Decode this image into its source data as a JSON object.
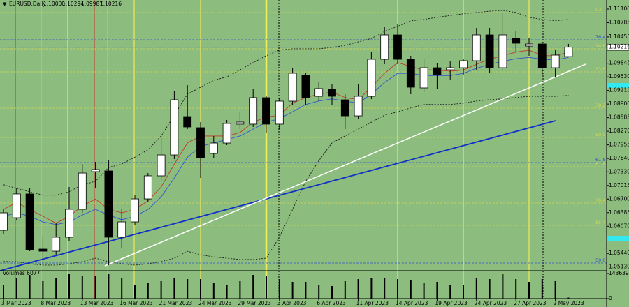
{
  "chart_data": [
    {
      "type": "candlestick",
      "title": "EURUSD,Daily",
      "header_values": [
        "1.10000",
        "1.10294",
        "1.09987",
        "1.10216"
      ],
      "categories": [
        "3 Mar 2023",
        null,
        null,
        "8 Mar 2023",
        null,
        null,
        "13 Mar 2023",
        null,
        null,
        "16 Mar 2023",
        null,
        null,
        "21 Mar 2023",
        null,
        null,
        "24 Mar 2023",
        null,
        null,
        "29 Mar 2023",
        null,
        null,
        "3 Apr 2023",
        null,
        null,
        "6 Apr 2023",
        null,
        null,
        "11 Apr 2023",
        null,
        null,
        "14 Apr 2023",
        null,
        null,
        "19 Apr 2023",
        null,
        null,
        "24 Apr 2023",
        null,
        null,
        "27 Apr 2023",
        null,
        null,
        "2 May 2023",
        null
      ],
      "open": [
        1.05977,
        1.06268,
        1.06818,
        1.05541,
        1.05492,
        1.05816,
        1.06462,
        1.07335,
        1.07351,
        1.05816,
        1.06171,
        1.06704,
        1.07238,
        1.07722,
        1.08611,
        1.08353,
        1.07755,
        1.07997,
        1.08434,
        1.08434,
        1.09048,
        1.08434,
        1.08967,
        1.09565,
        1.0908,
        1.09242,
        1.08999,
        1.08627,
        1.0908,
        1.09936,
        1.10502,
        1.09936,
        1.09274,
        1.09742,
        1.09694,
        1.09742,
        1.09904,
        1.10502,
        1.09742,
        1.10421,
        1.10243,
        1.10292,
        1.09742,
        1.1
      ],
      "high": [
        1.06462,
        1.06947,
        1.06947,
        1.05816,
        1.06139,
        1.06979,
        1.07512,
        1.07561,
        1.07593,
        1.06462,
        1.06785,
        1.07302,
        1.08159,
        1.09209,
        1.09338,
        1.08482,
        1.08159,
        1.0853,
        1.08724,
        1.09258,
        1.09096,
        1.09048,
        1.09742,
        1.09613,
        1.09403,
        1.09371,
        1.09128,
        1.09371,
        1.10098,
        1.10696,
        1.10744,
        1.10017,
        1.09936,
        1.09856,
        1.09888,
        1.09936,
        1.10664,
        1.10664,
        1.11019,
        1.10583,
        1.10421,
        1.1034,
        1.10146,
        1.10294
      ],
      "low": [
        1.05896,
        1.06203,
        1.05492,
        1.0525,
        1.05412,
        1.05735,
        1.06381,
        1.06947,
        1.05169,
        1.05573,
        1.06106,
        1.06624,
        1.07141,
        1.07626,
        1.0832,
        1.07189,
        1.07658,
        1.07949,
        1.0832,
        1.08369,
        1.0824,
        1.0832,
        1.08886,
        1.08886,
        1.08967,
        1.08886,
        1.0832,
        1.08563,
        1.09015,
        1.09823,
        1.09823,
        1.09128,
        1.09177,
        1.09258,
        1.09452,
        1.09565,
        1.09694,
        1.09613,
        1.09694,
        1.10098,
        1.10017,
        1.09565,
        1.09532,
        1.09987
      ],
      "close": [
        1.06381,
        1.06818,
        1.05525,
        1.05492,
        1.05816,
        1.06462,
        1.07302,
        1.07383,
        1.05816,
        1.06171,
        1.06704,
        1.07238,
        1.07722,
        1.08999,
        1.08369,
        1.07658,
        1.07997,
        1.0845,
        1.08482,
        1.09048,
        1.08434,
        1.08967,
        1.09613,
        1.09048,
        1.09258,
        1.0908,
        1.08627,
        1.0908,
        1.09936,
        1.10502,
        1.09936,
        1.0929,
        1.09742,
        1.09581,
        1.09742,
        1.09904,
        1.10502,
        1.09742,
        1.10502,
        1.10308,
        1.10292,
        1.09742,
        1.10033,
        1.10216
      ],
      "up_color": "#ffffff",
      "down_color": "#000000",
      "ylim": [
        1.0504,
        1.1131
      ],
      "yticks": [
        {
          "value": 1.111,
          "label": "1.11100"
        },
        {
          "value": 1.10785,
          "label": "1.10785"
        },
        {
          "value": 1.10455,
          "label": "1.10455"
        },
        {
          "value": 1.09845,
          "label": "1.09845"
        },
        {
          "value": 1.0953,
          "label": "1.09530"
        },
        {
          "value": 1.09215,
          "label": "1.09215"
        },
        {
          "value": 1.089,
          "label": "1.08900"
        },
        {
          "value": 1.08585,
          "label": "1.08585"
        },
        {
          "value": 1.0827,
          "label": "1.08270"
        },
        {
          "value": 1.07955,
          "label": "1.07955"
        },
        {
          "value": 1.0764,
          "label": "1.07640"
        },
        {
          "value": 1.0733,
          "label": "1.07330"
        },
        {
          "value": 1.07015,
          "label": "1.07015"
        },
        {
          "value": 1.067,
          "label": "1.06700"
        },
        {
          "value": 1.06385,
          "label": "1.06385"
        },
        {
          "value": 1.0607,
          "label": "1.06070"
        },
        {
          "value": 1.0544,
          "label": "1.05440"
        },
        {
          "value": 1.0513,
          "label": "1.05130"
        }
      ],
      "current_price": {
        "value": 1.10216,
        "label": "1.10216"
      },
      "overlays": [
        {
          "color": "#1a1a1a",
          "dash": true,
          "values": [
            1.0703,
            1.0695,
            1.0687,
            1.0679,
            1.0679,
            1.0687,
            1.0703,
            1.0711,
            1.0743,
            1.0751,
            1.0767,
            1.0784,
            1.0816,
            1.0864,
            1.0913,
            1.0929,
            1.0945,
            1.0953,
            1.0969,
            1.0986,
            1.1002,
            1.1015,
            1.1018,
            1.1018,
            1.1018,
            1.1021,
            1.1026,
            1.1034,
            1.1042,
            1.1058,
            1.107,
            1.1083,
            1.1086,
            1.1091,
            1.1095,
            1.1099,
            1.1102,
            1.1105,
            1.1107,
            1.1102,
            1.1091,
            1.1086,
            1.1083,
            1.1086
          ]
        },
        {
          "color": "#1a1a1a",
          "dash": true,
          "values": [
            1.0525,
            1.0525,
            1.052,
            1.0517,
            1.0517,
            1.052,
            1.0525,
            1.0533,
            1.0525,
            1.052,
            1.0517,
            1.052,
            1.0525,
            1.0533,
            1.0549,
            1.0541,
            1.0536,
            1.0533,
            1.053,
            1.053,
            1.0533,
            1.0582,
            1.0646,
            1.0711,
            1.0759,
            1.08,
            1.0816,
            1.0832,
            1.0848,
            1.0864,
            1.0872,
            1.0881,
            1.0889,
            1.0889,
            1.0889,
            1.0892,
            1.0897,
            1.09,
            1.0902,
            1.0905,
            1.0908,
            1.0908,
            1.0908,
            1.091
          ]
        },
        {
          "color": "#c0392b",
          "dash": false,
          "values": [
            1.0646,
            1.0662,
            1.0646,
            1.063,
            1.0614,
            1.063,
            1.0654,
            1.067,
            1.0646,
            1.0638,
            1.0646,
            1.0666,
            1.0698,
            1.0751,
            1.08,
            1.0816,
            1.0816,
            1.0816,
            1.0824,
            1.0848,
            1.086,
            1.0864,
            1.0892,
            1.0905,
            1.0913,
            1.0918,
            1.0905,
            1.09,
            1.0929,
            1.0961,
            1.0986,
            1.0977,
            1.0969,
            1.0969,
            1.0966,
            1.0969,
            1.0982,
            1.0994,
            1.1002,
            1.101,
            1.1015,
            1.1002,
            1.1002,
            1.101
          ]
        },
        {
          "color": "#2f55d4",
          "dash": false,
          "values": [
            1.063,
            1.0638,
            1.063,
            1.0617,
            1.0611,
            1.0617,
            1.0633,
            1.0646,
            1.0633,
            1.0622,
            1.063,
            1.0646,
            1.0675,
            1.0719,
            1.0767,
            1.0792,
            1.08,
            1.0808,
            1.0816,
            1.0832,
            1.0848,
            1.0856,
            1.0872,
            1.0889,
            1.0897,
            1.0902,
            1.0897,
            1.0892,
            1.0913,
            1.094,
            1.0961,
            1.0961,
            1.0956,
            1.0956,
            1.0956,
            1.0961,
            1.0973,
            1.0982,
            1.0989,
            1.0995,
            1.0998,
            1.0994,
            1.0992,
            1.0998
          ]
        }
      ],
      "levels": [
        {
          "label": "0.0",
          "value": 1.11019,
          "color": "#d6d84c"
        },
        {
          "label": "76.4",
          "value": 1.10389,
          "color": "#3050d0"
        },
        {
          "label": "14.6",
          "value": 1.10179,
          "color": "#d6d84c"
        },
        {
          "label": "23.6",
          "value": 1.09646,
          "color": "#d6d84c"
        },
        {
          "label": "38.2",
          "value": 1.08805,
          "color": "#d6d84c"
        },
        {
          "label": "50.0",
          "value": 1.08127,
          "color": "#d6d84c"
        },
        {
          "label": "61.8",
          "value": 1.07545,
          "color": "#3050d0"
        },
        {
          "label": "61.8",
          "value": 1.07448,
          "color": "#d6d84c"
        },
        {
          "label": "76.4",
          "value": 1.06608,
          "color": "#d6d84c"
        },
        {
          "label": "85.4",
          "value": 1.06091,
          "color": "#d6d84c"
        },
        {
          "label": "50.0",
          "value": 1.05218,
          "color": "#3050d0"
        }
      ]
    },
    {
      "type": "bar",
      "title": "Volumes 6077",
      "color": "#000000",
      "values": [
        79800,
        119700,
        135700,
        99800,
        119700,
        139600,
        131700,
        127700,
        143600,
        119700,
        79800,
        87800,
        99800,
        119700,
        111700,
        111700,
        87800,
        79800,
        99800,
        135700,
        127700,
        111700,
        95800,
        95800,
        79800,
        71800,
        99800,
        111700,
        119700,
        119700,
        111700,
        103700,
        87800,
        95800,
        79800,
        79800,
        119700,
        111700,
        139600,
        111700,
        95800,
        111700,
        99800,
        6077
      ],
      "ylim": [
        0,
        143639
      ],
      "yticks": [
        143639,
        0
      ]
    }
  ]
}
